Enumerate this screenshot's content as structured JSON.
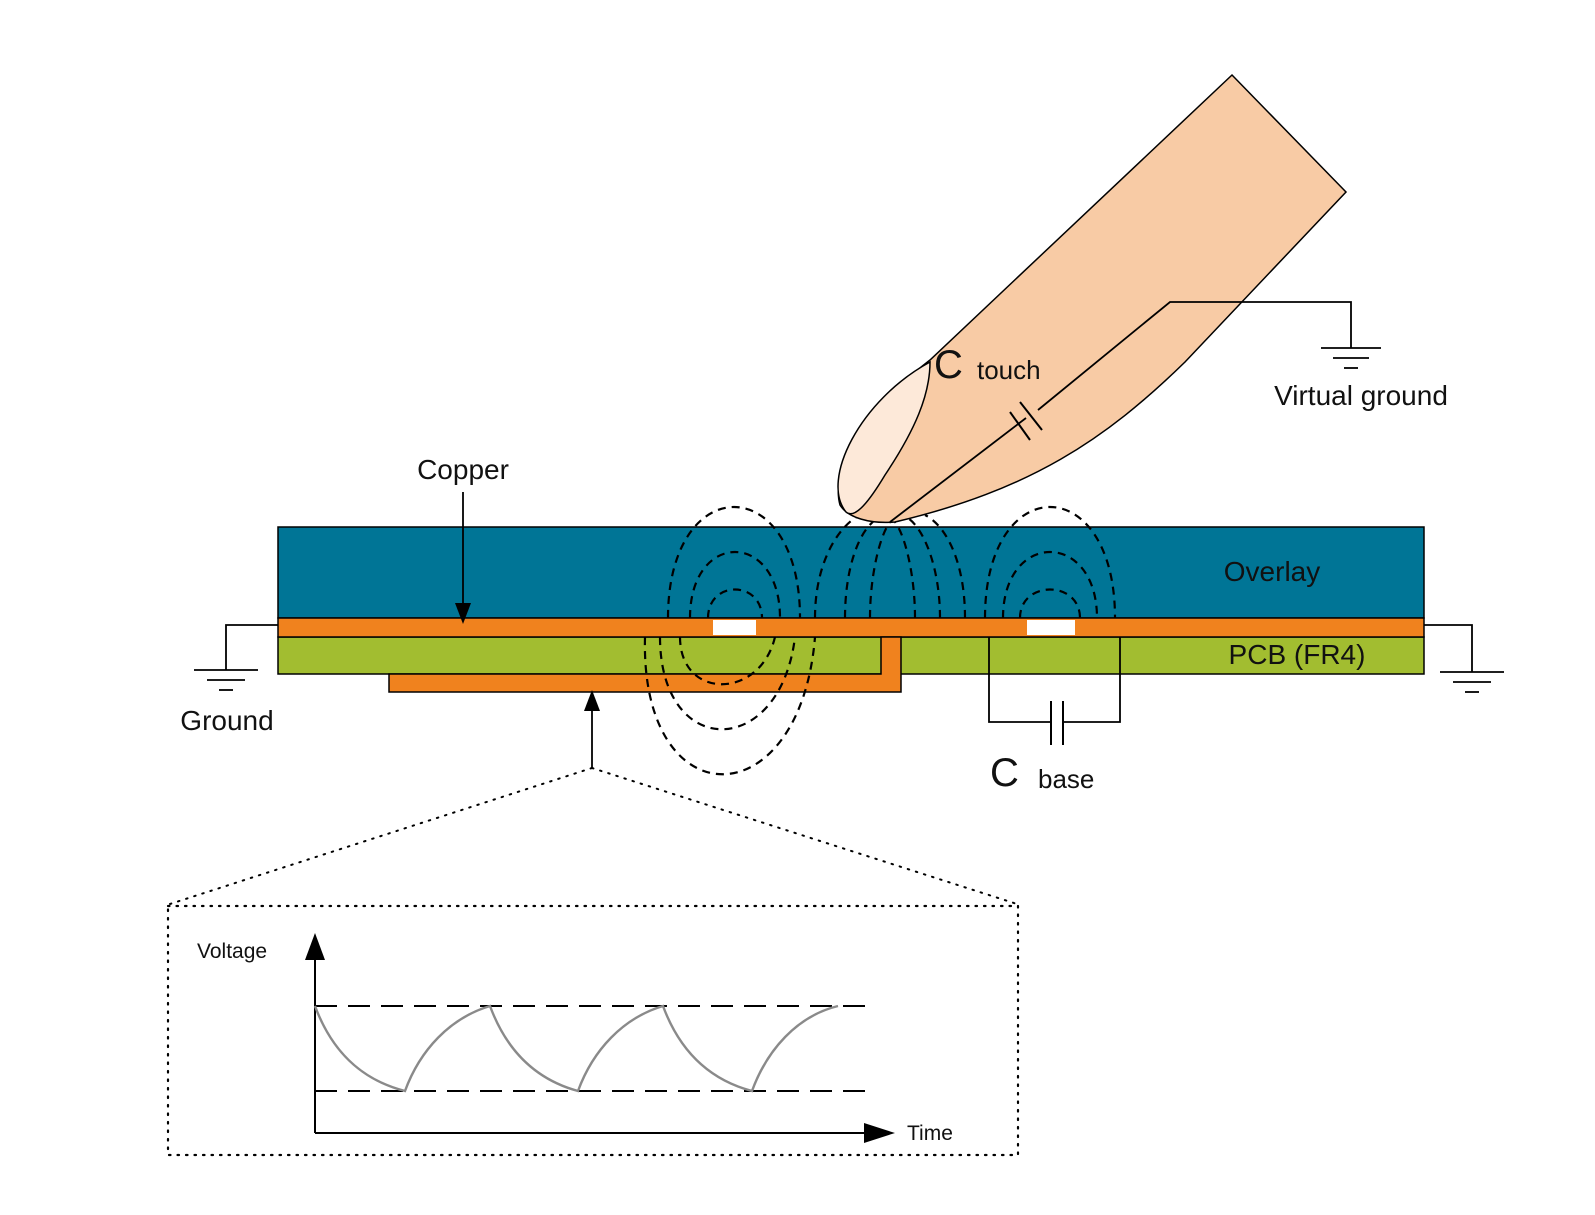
{
  "labels": {
    "copper": "Copper",
    "overlay": "Overlay",
    "pcb": "PCB (FR4)",
    "ground": "Ground",
    "virtual_ground": "Virtual ground",
    "c_touch_main": "C",
    "c_touch_sub": "touch",
    "c_base_main": "C",
    "c_base_sub": "base"
  },
  "inset_chart": {
    "y_label": "Voltage",
    "x_label": "Time"
  },
  "colors": {
    "overlay": "#007596",
    "copper": "#f0821e",
    "pcb": "#a2bd30",
    "finger": "#f8cba5",
    "fingernail": "#fde9d9",
    "pad_gap": "#ffffff",
    "waveform": "#8a8a8a"
  }
}
